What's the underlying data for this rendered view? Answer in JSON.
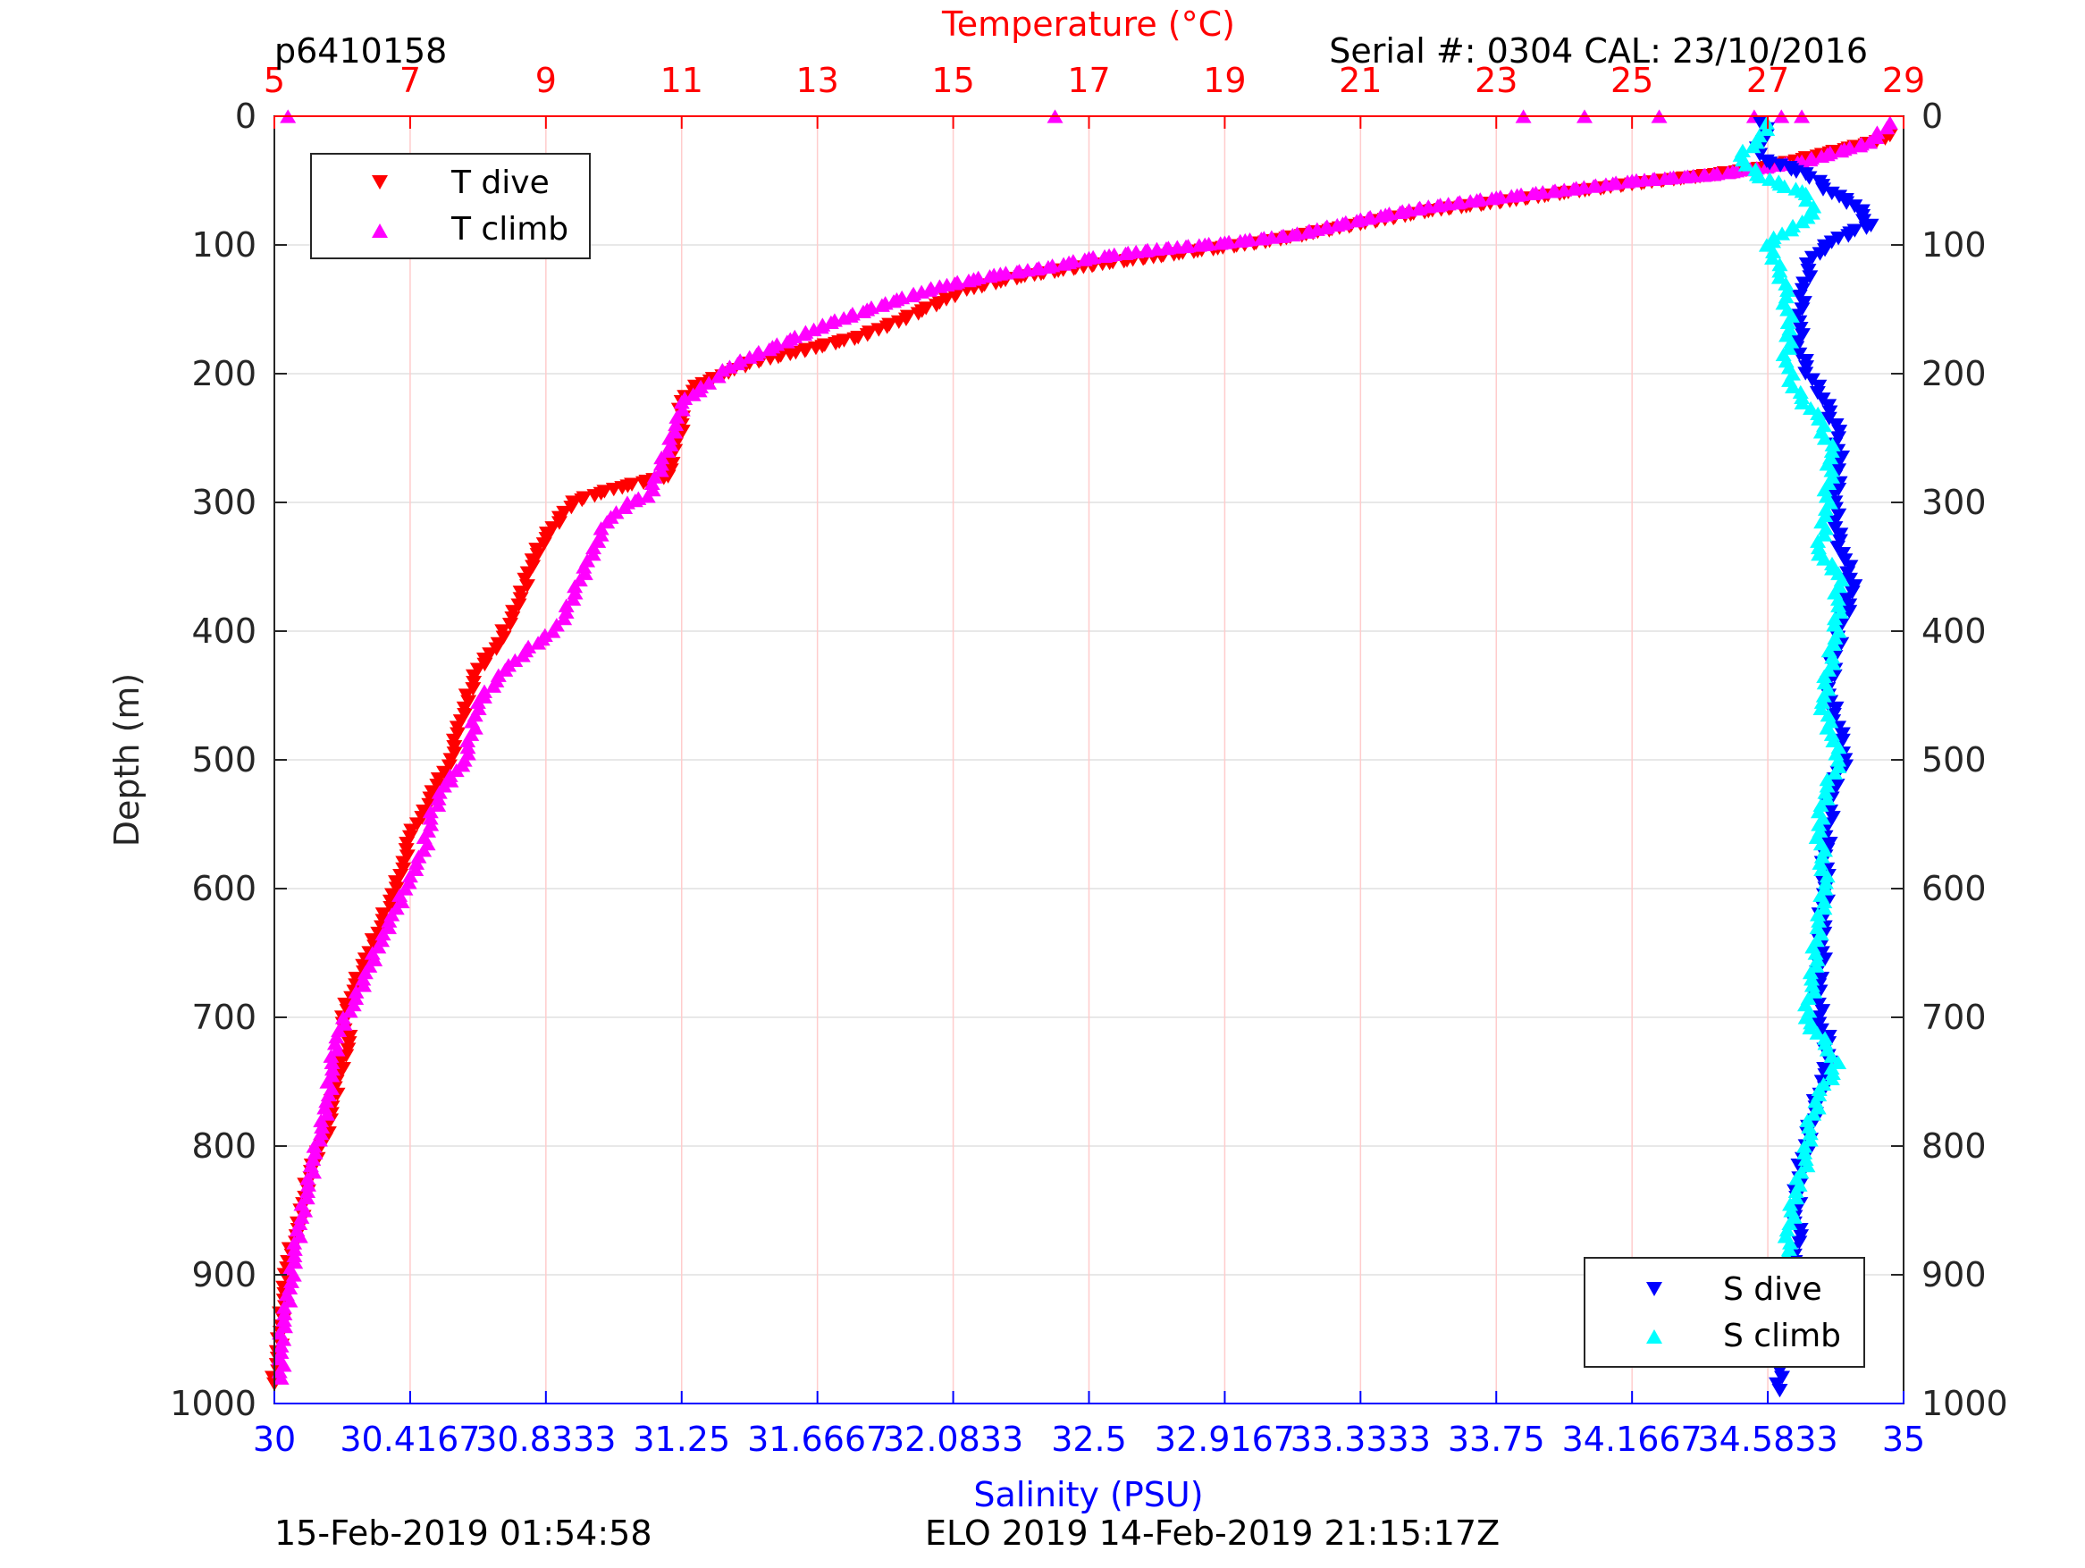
{
  "header": {
    "profile_id": "p6410158",
    "serial": "Serial #: 0304  CAL: 23/10/2016"
  },
  "footer": {
    "left_timestamp": "15-Feb-2019 01:54:58",
    "mission": "ELO 2019 14-Feb-2019 21:15:17Z"
  },
  "colors": {
    "t_dive": "#ff0000",
    "t_climb": "#ff00ff",
    "s_dive": "#0000ff",
    "s_climb": "#00ffff",
    "temp_axis": "#ff0000",
    "sal_axis": "#0000ff",
    "grid_temp": "#ffcccc",
    "grid_depth": "#e0e0e0"
  },
  "chart_data": {
    "type": "scatter",
    "y_axis": {
      "label": "Depth (m)",
      "lim": [
        0,
        1000
      ],
      "reversed": true,
      "ticks": [
        0,
        100,
        200,
        300,
        400,
        500,
        600,
        700,
        800,
        900,
        1000
      ],
      "tick_labels": [
        "0",
        "100",
        "200",
        "300",
        "400",
        "500",
        "600",
        "700",
        "800",
        "900",
        "1000"
      ]
    },
    "x_top": {
      "label": "Temperature (°C)",
      "lim": [
        5,
        29
      ],
      "ticks": [
        5,
        7,
        9,
        11,
        13,
        15,
        17,
        19,
        21,
        23,
        25,
        27,
        29
      ],
      "tick_labels": [
        "5",
        "7",
        "9",
        "11",
        "13",
        "15",
        "17",
        "19",
        "21",
        "23",
        "25",
        "27",
        "29"
      ]
    },
    "x_bottom": {
      "label": "Salinity (PSU)",
      "lim": [
        30,
        35
      ],
      "ticks": [
        30,
        30.4167,
        30.8333,
        31.25,
        31.6667,
        32.0833,
        32.5,
        32.9167,
        33.3333,
        33.75,
        34.1667,
        34.5833,
        35
      ],
      "tick_labels": [
        "30",
        "30.4167",
        "30.8333",
        "31.25",
        "31.6667",
        "32.0833",
        "32.5",
        "32.9167",
        "33.3333",
        "33.75",
        "34.1667",
        "34.5833",
        "35"
      ]
    },
    "grid": true,
    "legends": [
      {
        "location": "top-left",
        "entries": [
          {
            "label": "T dive",
            "series": "t_dive"
          },
          {
            "label": "T climb",
            "series": "t_climb"
          }
        ]
      },
      {
        "location": "bottom-right",
        "entries": [
          {
            "label": "S dive",
            "series": "s_dive"
          },
          {
            "label": "S climb",
            "series": "s_climb"
          }
        ]
      }
    ],
    "series": [
      {
        "name": "T dive",
        "axis": "temperature",
        "marker": "triangle-down",
        "points": [
          [
            28.8,
            15
          ],
          [
            28.6,
            20
          ],
          [
            27.8,
            30
          ],
          [
            27.0,
            40
          ],
          [
            26.0,
            47
          ],
          [
            25.0,
            53
          ],
          [
            24.0,
            60
          ],
          [
            23.2,
            66
          ],
          [
            22.0,
            74
          ],
          [
            21.0,
            84
          ],
          [
            20.2,
            92
          ],
          [
            19.6,
            98
          ],
          [
            18.6,
            105
          ],
          [
            17.2,
            115
          ],
          [
            16.0,
            125
          ],
          [
            15.2,
            135
          ],
          [
            14.8,
            145
          ],
          [
            14.2,
            160
          ],
          [
            13.6,
            172
          ],
          [
            12.6,
            185
          ],
          [
            12.0,
            192
          ],
          [
            11.6,
            202
          ],
          [
            11.2,
            210
          ],
          [
            11.0,
            222
          ],
          [
            11.0,
            240
          ],
          [
            10.9,
            260
          ],
          [
            10.8,
            280
          ],
          [
            10.0,
            290
          ],
          [
            9.4,
            300
          ],
          [
            9.1,
            320
          ],
          [
            8.8,
            345
          ],
          [
            8.6,
            380
          ],
          [
            8.3,
            410
          ],
          [
            8.0,
            430
          ],
          [
            7.8,
            460
          ],
          [
            7.7,
            480
          ],
          [
            7.6,
            500
          ],
          [
            7.4,
            520
          ],
          [
            7.2,
            540
          ],
          [
            7.0,
            560
          ],
          [
            6.9,
            580
          ],
          [
            6.8,
            600
          ],
          [
            6.6,
            625
          ],
          [
            6.4,
            650
          ],
          [
            6.2,
            675
          ],
          [
            6.0,
            700
          ],
          [
            6.1,
            720
          ],
          [
            5.95,
            745
          ],
          [
            5.85,
            770
          ],
          [
            5.75,
            795
          ],
          [
            5.55,
            815
          ],
          [
            5.45,
            840
          ],
          [
            5.35,
            865
          ],
          [
            5.2,
            890
          ],
          [
            5.15,
            915
          ],
          [
            5.1,
            940
          ],
          [
            5.05,
            965
          ],
          [
            5.0,
            985
          ]
        ]
      },
      {
        "name": "T climb",
        "axis": "temperature",
        "marker": "triangle-up",
        "points": [
          [
            28.8,
            5
          ],
          [
            28.5,
            20
          ],
          [
            27.5,
            35
          ],
          [
            26.2,
            45
          ],
          [
            25.0,
            50
          ],
          [
            24.0,
            57
          ],
          [
            23.0,
            63
          ],
          [
            22.0,
            70
          ],
          [
            21.0,
            80
          ],
          [
            20.0,
            92
          ],
          [
            19.0,
            98
          ],
          [
            18.0,
            103
          ],
          [
            17.0,
            110
          ],
          [
            16.4,
            117
          ],
          [
            15.6,
            123
          ],
          [
            14.8,
            132
          ],
          [
            14.0,
            145
          ],
          [
            13.2,
            160
          ],
          [
            12.6,
            173
          ],
          [
            12.0,
            187
          ],
          [
            11.6,
            197
          ],
          [
            11.4,
            207
          ],
          [
            11.0,
            222
          ],
          [
            10.9,
            245
          ],
          [
            10.7,
            270
          ],
          [
            10.5,
            295
          ],
          [
            10.2,
            300
          ],
          [
            9.9,
            315
          ],
          [
            9.7,
            335
          ],
          [
            9.5,
            360
          ],
          [
            9.3,
            385
          ],
          [
            9.1,
            400
          ],
          [
            8.7,
            415
          ],
          [
            8.4,
            430
          ],
          [
            8.0,
            455
          ],
          [
            7.9,
            480
          ],
          [
            7.8,
            500
          ],
          [
            7.5,
            520
          ],
          [
            7.3,
            545
          ],
          [
            7.2,
            570
          ],
          [
            7.0,
            590
          ],
          [
            6.8,
            615
          ],
          [
            6.6,
            635
          ],
          [
            6.4,
            660
          ],
          [
            6.2,
            685
          ],
          [
            5.95,
            710
          ],
          [
            5.85,
            735
          ],
          [
            5.8,
            760
          ],
          [
            5.7,
            785
          ],
          [
            5.6,
            805
          ],
          [
            5.5,
            830
          ],
          [
            5.4,
            855
          ],
          [
            5.3,
            880
          ],
          [
            5.25,
            905
          ],
          [
            5.15,
            930
          ],
          [
            5.1,
            955
          ],
          [
            5.1,
            980
          ],
          [
            16.5,
            0
          ],
          [
            23.4,
            0
          ],
          [
            24.3,
            0
          ],
          [
            25.4,
            0
          ],
          [
            26.8,
            0
          ],
          [
            27.2,
            0
          ],
          [
            27.5,
            0
          ],
          [
            5.2,
            0
          ]
        ]
      },
      {
        "name": "S dive",
        "axis": "salinity",
        "marker": "triangle-down",
        "points": [
          [
            34.56,
            5
          ],
          [
            34.58,
            15
          ],
          [
            34.55,
            25
          ],
          [
            34.58,
            35
          ],
          [
            34.7,
            45
          ],
          [
            34.78,
            60
          ],
          [
            34.85,
            70
          ],
          [
            34.9,
            85
          ],
          [
            34.8,
            95
          ],
          [
            34.72,
            110
          ],
          [
            34.69,
            135
          ],
          [
            34.68,
            160
          ],
          [
            34.68,
            185
          ],
          [
            34.72,
            205
          ],
          [
            34.77,
            225
          ],
          [
            34.8,
            250
          ],
          [
            34.8,
            275
          ],
          [
            34.79,
            300
          ],
          [
            34.79,
            320
          ],
          [
            34.82,
            345
          ],
          [
            34.85,
            365
          ],
          [
            34.81,
            395
          ],
          [
            34.79,
            420
          ],
          [
            34.77,
            450
          ],
          [
            34.8,
            475
          ],
          [
            34.82,
            500
          ],
          [
            34.78,
            525
          ],
          [
            34.77,
            550
          ],
          [
            34.76,
            575
          ],
          [
            34.76,
            600
          ],
          [
            34.75,
            625
          ],
          [
            34.75,
            650
          ],
          [
            34.74,
            675
          ],
          [
            34.74,
            700
          ],
          [
            34.77,
            720
          ],
          [
            34.76,
            745
          ],
          [
            34.73,
            770
          ],
          [
            34.7,
            800
          ],
          [
            34.68,
            825
          ],
          [
            34.67,
            850
          ],
          [
            34.68,
            875
          ],
          [
            34.64,
            900
          ],
          [
            34.63,
            925
          ],
          [
            34.63,
            950
          ],
          [
            34.62,
            975
          ],
          [
            34.62,
            990
          ]
        ]
      },
      {
        "name": "S climb",
        "axis": "salinity",
        "marker": "triangle-up",
        "points": [
          [
            34.58,
            5
          ],
          [
            34.55,
            20
          ],
          [
            34.5,
            30
          ],
          [
            34.55,
            45
          ],
          [
            34.7,
            60
          ],
          [
            34.72,
            75
          ],
          [
            34.66,
            85
          ],
          [
            34.58,
            100
          ],
          [
            34.62,
            115
          ],
          [
            34.64,
            140
          ],
          [
            34.65,
            165
          ],
          [
            34.64,
            190
          ],
          [
            34.66,
            210
          ],
          [
            34.74,
            235
          ],
          [
            34.78,
            260
          ],
          [
            34.77,
            285
          ],
          [
            34.76,
            310
          ],
          [
            34.74,
            340
          ],
          [
            34.8,
            355
          ],
          [
            34.8,
            380
          ],
          [
            34.79,
            405
          ],
          [
            34.77,
            430
          ],
          [
            34.75,
            455
          ],
          [
            34.78,
            480
          ],
          [
            34.8,
            500
          ],
          [
            34.76,
            525
          ],
          [
            34.74,
            550
          ],
          [
            34.75,
            575
          ],
          [
            34.76,
            600
          ],
          [
            34.74,
            625
          ],
          [
            34.73,
            650
          ],
          [
            34.72,
            675
          ],
          [
            34.7,
            700
          ],
          [
            34.76,
            720
          ],
          [
            34.8,
            735
          ],
          [
            34.74,
            760
          ],
          [
            34.71,
            785
          ],
          [
            34.7,
            810
          ],
          [
            34.67,
            835
          ],
          [
            34.65,
            860
          ],
          [
            34.64,
            885
          ],
          [
            34.64,
            910
          ],
          [
            34.62,
            935
          ],
          [
            34.61,
            960
          ]
        ]
      }
    ]
  }
}
